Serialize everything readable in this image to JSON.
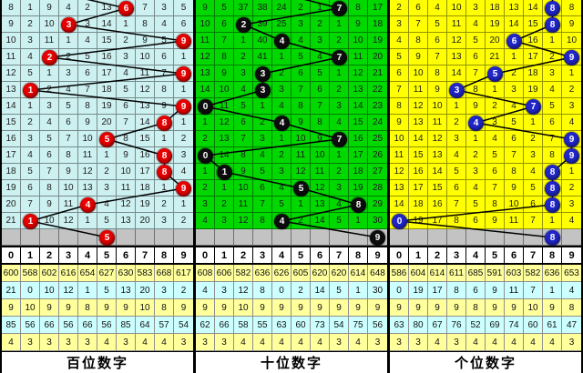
{
  "digit_header": [
    "0",
    "1",
    "2",
    "3",
    "4",
    "5",
    "6",
    "7",
    "8",
    "9"
  ],
  "panels": [
    {
      "title": "百位数字",
      "cell_bg": "#cdf0f0",
      "ball_color": "#e60000",
      "entry_col": 2.2,
      "rows": [
        {
          "ball": 6,
          "miss": [
            "8",
            "1",
            "9",
            "4",
            "2",
            "13",
            "",
            "7",
            "3",
            "5"
          ]
        },
        {
          "ball": 3,
          "miss": [
            "9",
            "2",
            "10",
            "",
            "3",
            "14",
            "1",
            "8",
            "4",
            "6"
          ]
        },
        {
          "ball": 9,
          "miss": [
            "10",
            "3",
            "11",
            "1",
            "4",
            "15",
            "2",
            "9",
            "5",
            ""
          ]
        },
        {
          "ball": 2,
          "miss": [
            "11",
            "4",
            "",
            "2",
            "5",
            "16",
            "3",
            "10",
            "6",
            "1"
          ]
        },
        {
          "ball": 9,
          "miss": [
            "12",
            "5",
            "1",
            "3",
            "6",
            "17",
            "4",
            "11",
            "7",
            ""
          ]
        },
        {
          "ball": 1,
          "miss": [
            "13",
            "",
            "2",
            "4",
            "7",
            "18",
            "5",
            "12",
            "8",
            "1"
          ]
        },
        {
          "ball": 9,
          "miss": [
            "14",
            "1",
            "3",
            "5",
            "8",
            "19",
            "6",
            "13",
            "9",
            ""
          ]
        },
        {
          "ball": 8,
          "miss": [
            "15",
            "2",
            "4",
            "6",
            "9",
            "20",
            "7",
            "14",
            "",
            "1"
          ]
        },
        {
          "ball": 5,
          "miss": [
            "16",
            "3",
            "5",
            "7",
            "10",
            "",
            "8",
            "15",
            "1",
            "2"
          ]
        },
        {
          "ball": 8,
          "miss": [
            "17",
            "4",
            "6",
            "8",
            "11",
            "1",
            "9",
            "16",
            "",
            "3"
          ]
        },
        {
          "ball": 8,
          "miss": [
            "18",
            "5",
            "7",
            "9",
            "12",
            "2",
            "10",
            "17",
            "",
            "4"
          ]
        },
        {
          "ball": 9,
          "miss": [
            "19",
            "6",
            "8",
            "10",
            "13",
            "3",
            "11",
            "18",
            "1",
            ""
          ]
        },
        {
          "ball": 4,
          "miss": [
            "20",
            "7",
            "9",
            "11",
            "",
            "4",
            "12",
            "19",
            "2",
            "1"
          ]
        },
        {
          "ball": 1,
          "miss": [
            "21",
            "",
            "10",
            "12",
            "1",
            "5",
            "13",
            "20",
            "3",
            "2"
          ]
        }
      ],
      "next_ball": 5,
      "stats": [
        [
          "600",
          "568",
          "602",
          "616",
          "654",
          "627",
          "630",
          "583",
          "668",
          "617"
        ],
        [
          "21",
          "0",
          "10",
          "12",
          "1",
          "5",
          "13",
          "20",
          "3",
          "2"
        ],
        [
          "9",
          "10",
          "9",
          "9",
          "8",
          "9",
          "9",
          "10",
          "8",
          "9"
        ],
        [
          "85",
          "56",
          "66",
          "56",
          "66",
          "56",
          "85",
          "64",
          "57",
          "54"
        ],
        [
          "4",
          "3",
          "3",
          "3",
          "3",
          "4",
          "3",
          "4",
          "4",
          "3"
        ]
      ]
    },
    {
      "title": "十位数字",
      "cell_bg": "#00d800",
      "ball_color": "#0d0d0d",
      "entry_col": 3.6,
      "rows": [
        {
          "ball": 7,
          "miss": [
            "9",
            "5",
            "37",
            "38",
            "24",
            "2",
            "1",
            "",
            "8",
            "17"
          ]
        },
        {
          "ball": 2,
          "miss": [
            "10",
            "6",
            "",
            "39",
            "25",
            "3",
            "2",
            "1",
            "9",
            "18"
          ]
        },
        {
          "ball": 4,
          "miss": [
            "11",
            "7",
            "1",
            "40",
            "",
            "4",
            "3",
            "2",
            "10",
            "19"
          ]
        },
        {
          "ball": 7,
          "miss": [
            "12",
            "8",
            "2",
            "41",
            "1",
            "5",
            "4",
            "",
            "11",
            "20"
          ]
        },
        {
          "ball": 3,
          "miss": [
            "13",
            "9",
            "3",
            "",
            "2",
            "6",
            "5",
            "1",
            "12",
            "21"
          ]
        },
        {
          "ball": 3,
          "miss": [
            "14",
            "10",
            "4",
            "",
            "3",
            "7",
            "6",
            "2",
            "13",
            "22"
          ]
        },
        {
          "ball": 0,
          "miss": [
            "",
            "11",
            "5",
            "1",
            "4",
            "8",
            "7",
            "3",
            "14",
            "23"
          ]
        },
        {
          "ball": 4,
          "miss": [
            "1",
            "12",
            "6",
            "2",
            "",
            "9",
            "8",
            "4",
            "15",
            "24"
          ]
        },
        {
          "ball": 7,
          "miss": [
            "2",
            "13",
            "7",
            "3",
            "1",
            "10",
            "9",
            "",
            "16",
            "25"
          ]
        },
        {
          "ball": 0,
          "miss": [
            "",
            "14",
            "8",
            "4",
            "2",
            "11",
            "10",
            "1",
            "17",
            "26"
          ]
        },
        {
          "ball": 1,
          "miss": [
            "1",
            "",
            "9",
            "5",
            "3",
            "12",
            "11",
            "2",
            "18",
            "27"
          ]
        },
        {
          "ball": 5,
          "miss": [
            "2",
            "1",
            "10",
            "6",
            "4",
            "",
            "12",
            "3",
            "19",
            "28"
          ]
        },
        {
          "ball": 8,
          "miss": [
            "3",
            "2",
            "11",
            "7",
            "5",
            "1",
            "13",
            "4",
            "",
            "29"
          ]
        },
        {
          "ball": 4,
          "miss": [
            "4",
            "3",
            "12",
            "8",
            "",
            "2",
            "14",
            "5",
            "1",
            "30"
          ]
        }
      ],
      "next_ball": 9,
      "stats": [
        [
          "608",
          "606",
          "582",
          "636",
          "626",
          "605",
          "620",
          "620",
          "614",
          "648"
        ],
        [
          "4",
          "3",
          "12",
          "8",
          "0",
          "2",
          "14",
          "5",
          "1",
          "30"
        ],
        [
          "9",
          "9",
          "10",
          "9",
          "9",
          "9",
          "9",
          "9",
          "9",
          "9"
        ],
        [
          "62",
          "66",
          "58",
          "55",
          "63",
          "60",
          "73",
          "54",
          "75",
          "56"
        ],
        [
          "3",
          "3",
          "4",
          "4",
          "4",
          "4",
          "4",
          "3",
          "4",
          "3"
        ]
      ]
    },
    {
      "title": "个位数字",
      "cell_bg": "#ffff00",
      "ball_color": "#2026c8",
      "entry_col": 8,
      "rows": [
        {
          "ball": 8,
          "miss": [
            "2",
            "6",
            "4",
            "10",
            "3",
            "18",
            "13",
            "14",
            "",
            "8"
          ]
        },
        {
          "ball": 8,
          "miss": [
            "3",
            "7",
            "5",
            "11",
            "4",
            "19",
            "14",
            "15",
            "",
            "9"
          ]
        },
        {
          "ball": 6,
          "miss": [
            "4",
            "8",
            "6",
            "12",
            "5",
            "20",
            "",
            "16",
            "1",
            "10"
          ]
        },
        {
          "ball": 9,
          "miss": [
            "5",
            "9",
            "7",
            "13",
            "6",
            "21",
            "1",
            "17",
            "2",
            ""
          ]
        },
        {
          "ball": 5,
          "miss": [
            "6",
            "10",
            "8",
            "14",
            "7",
            "",
            "2",
            "18",
            "3",
            "1"
          ]
        },
        {
          "ball": 3,
          "miss": [
            "7",
            "11",
            "9",
            "",
            "8",
            "1",
            "3",
            "19",
            "4",
            "2"
          ]
        },
        {
          "ball": 7,
          "miss": [
            "8",
            "12",
            "10",
            "1",
            "9",
            "2",
            "4",
            "",
            "5",
            "3"
          ]
        },
        {
          "ball": 4,
          "miss": [
            "9",
            "13",
            "11",
            "2",
            "",
            "3",
            "5",
            "1",
            "6",
            "4"
          ]
        },
        {
          "ball": 9,
          "miss": [
            "10",
            "14",
            "12",
            "3",
            "1",
            "4",
            "6",
            "2",
            "7",
            ""
          ]
        },
        {
          "ball": 9,
          "miss": [
            "11",
            "15",
            "13",
            "4",
            "2",
            "5",
            "7",
            "3",
            "8",
            ""
          ]
        },
        {
          "ball": 8,
          "miss": [
            "12",
            "16",
            "14",
            "5",
            "3",
            "6",
            "8",
            "4",
            "",
            "1"
          ]
        },
        {
          "ball": 8,
          "miss": [
            "13",
            "17",
            "15",
            "6",
            "4",
            "7",
            "9",
            "5",
            "",
            "2"
          ]
        },
        {
          "ball": 8,
          "miss": [
            "14",
            "18",
            "16",
            "7",
            "5",
            "8",
            "10",
            "6",
            "",
            "3"
          ]
        },
        {
          "ball": 0,
          "miss": [
            "",
            "19",
            "17",
            "8",
            "6",
            "9",
            "11",
            "7",
            "1",
            "4"
          ]
        }
      ],
      "next_ball": 8,
      "stats": [
        [
          "586",
          "604",
          "614",
          "611",
          "685",
          "591",
          "603",
          "582",
          "636",
          "653"
        ],
        [
          "0",
          "19",
          "17",
          "8",
          "6",
          "9",
          "11",
          "7",
          "1",
          "4"
        ],
        [
          "9",
          "9",
          "9",
          "9",
          "8",
          "9",
          "9",
          "10",
          "9",
          "8"
        ],
        [
          "63",
          "80",
          "67",
          "76",
          "52",
          "69",
          "74",
          "60",
          "61",
          "47"
        ],
        [
          "3",
          "3",
          "4",
          "3",
          "4",
          "4",
          "4",
          "4",
          "4",
          "3"
        ]
      ]
    }
  ],
  "chart_data": {
    "type": "table",
    "description": "3-panel lottery digit trend chart (miss-count matrix per digit 0-9, drawn digit shown as ball)",
    "panel_titles": [
      "百位数字",
      "十位数字",
      "个位数字"
    ],
    "digits_axis": [
      0,
      1,
      2,
      3,
      4,
      5,
      6,
      7,
      8,
      9
    ],
    "series": [
      {
        "name": "百位数字",
        "drawn_sequence": [
          6,
          3,
          9,
          2,
          9,
          1,
          9,
          8,
          5,
          8,
          8,
          9,
          4,
          1
        ],
        "next_row_ball": 5,
        "totals": [
          600,
          568,
          602,
          616,
          654,
          627,
          630,
          583,
          668,
          617
        ],
        "current_miss": [
          21,
          0,
          10,
          12,
          1,
          5,
          13,
          20,
          3,
          2
        ],
        "stat_row3": [
          9,
          10,
          9,
          9,
          8,
          9,
          9,
          10,
          8,
          9
        ],
        "stat_row4": [
          85,
          56,
          66,
          56,
          66,
          56,
          85,
          64,
          57,
          54
        ],
        "stat_row5": [
          4,
          3,
          3,
          3,
          3,
          4,
          3,
          4,
          4,
          3
        ]
      },
      {
        "name": "十位数字",
        "drawn_sequence": [
          7,
          2,
          4,
          7,
          3,
          3,
          0,
          4,
          7,
          0,
          1,
          5,
          8,
          4
        ],
        "next_row_ball": 9,
        "totals": [
          608,
          606,
          582,
          636,
          626,
          605,
          620,
          620,
          614,
          648
        ],
        "current_miss": [
          4,
          3,
          12,
          8,
          0,
          2,
          14,
          5,
          1,
          30
        ],
        "stat_row3": [
          9,
          9,
          10,
          9,
          9,
          9,
          9,
          9,
          9,
          9
        ],
        "stat_row4": [
          62,
          66,
          58,
          55,
          63,
          60,
          73,
          54,
          75,
          56
        ],
        "stat_row5": [
          3,
          3,
          4,
          4,
          4,
          4,
          4,
          3,
          4,
          3
        ]
      },
      {
        "name": "个位数字",
        "drawn_sequence": [
          8,
          8,
          6,
          9,
          5,
          3,
          7,
          4,
          9,
          9,
          8,
          8,
          8,
          0
        ],
        "next_row_ball": 8,
        "totals": [
          586,
          604,
          614,
          611,
          685,
          591,
          603,
          582,
          636,
          653
        ],
        "current_miss": [
          0,
          19,
          17,
          8,
          6,
          9,
          11,
          7,
          1,
          4
        ],
        "stat_row3": [
          9,
          9,
          9,
          9,
          8,
          9,
          9,
          10,
          9,
          8
        ],
        "stat_row4": [
          63,
          80,
          67,
          76,
          52,
          69,
          74,
          60,
          61,
          47
        ],
        "stat_row5": [
          3,
          3,
          4,
          3,
          4,
          4,
          4,
          4,
          4,
          3
        ]
      }
    ]
  }
}
